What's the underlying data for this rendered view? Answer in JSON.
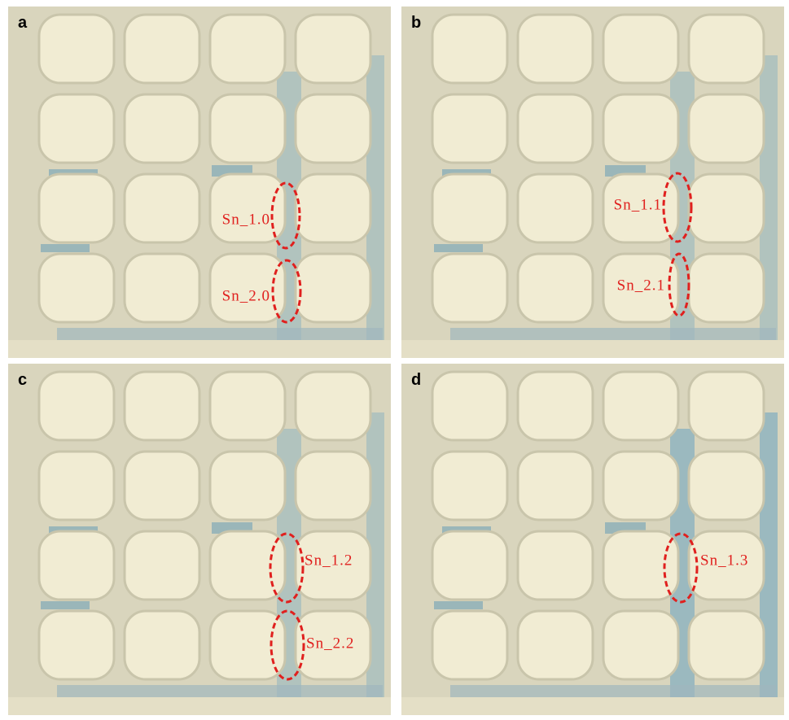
{
  "panels": [
    {
      "label": "a",
      "annotations": [
        "Sn_1.0",
        "Sn_2.0"
      ]
    },
    {
      "label": "b",
      "annotations": [
        "Sn_1.1",
        "Sn_2.1"
      ]
    },
    {
      "label": "c",
      "annotations": [
        "Sn_1.2",
        "Sn_2.2"
      ]
    },
    {
      "label": "d",
      "annotations": [
        "Sn_1.3"
      ]
    }
  ]
}
